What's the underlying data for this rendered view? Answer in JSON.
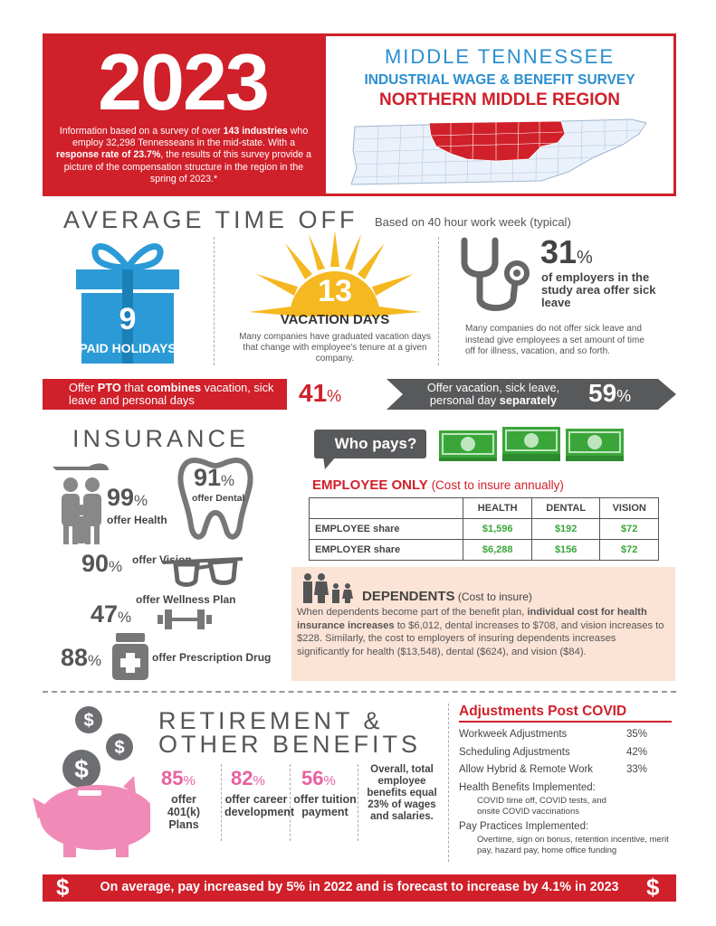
{
  "header": {
    "year": "2023",
    "info_prefix": "Information based on a survey of over ",
    "industries": "143 industries",
    "info_mid": " who employ 32,298 Tennesseans in the mid-state.  With a ",
    "response": "response rate of 23.7%",
    "info_end": ", the results of this survey provide a picture of the compensation structure in the region in the spring of 2023.*",
    "title1": "MIDDLE TENNESSEE",
    "title2": "INDUSTRIAL WAGE & BENEFIT SURVEY",
    "title3": "NORTHERN MIDDLE REGION"
  },
  "time_off": {
    "title": "AVERAGE TIME OFF",
    "subtitle": "Based on 40 hour work week (typical)",
    "holidays_num": "9",
    "holidays_label": "PAID HOLIDAYS",
    "vacation_num": "13",
    "vacation_label": "VACATION DAYS",
    "vacation_desc": "Many companies have graduated vacation days that change with employee's tenure at a given company.",
    "sick_pct": "31",
    "sick_pct_sign": "%",
    "sick_label": "of employers in the study area offer sick leave",
    "sick_desc": "Many companies do not offer sick leave and instead give employees a set amount of time off for illness, vacation, and so forth."
  },
  "pto": {
    "left_a": "Offer ",
    "left_b": "PTO",
    "left_c": " that ",
    "left_d": "combines",
    "left_e": " vacation, sick leave and personal days",
    "left_pct": "41",
    "right_a": "Offer vacation, sick leave, personal day ",
    "right_b": "separately",
    "right_pct": "59",
    "pct_sign": "%"
  },
  "insurance": {
    "title": "INSURANCE",
    "health_pct": "99",
    "health_lbl": "offer Health",
    "dental_pct": "91",
    "dental_lbl": "offer Dental",
    "vision_pct": "90",
    "vision_lbl": "offer Vision",
    "wellness_pct": "47",
    "wellness_lbl": "offer Wellness Plan",
    "rx_pct": "88",
    "rx_lbl": "offer Prescription Drug",
    "pct_sign": "%"
  },
  "who_pays": {
    "bubble": "Who pays?",
    "emp_only": "EMPLOYEE ONLY",
    "emp_only_sub": " (Cost to insure annually)",
    "columns": [
      "HEALTH",
      "DENTAL",
      "VISION"
    ],
    "rows": [
      {
        "label": "EMPLOYEE share",
        "values": [
          "$1,596",
          "$192",
          "$72"
        ]
      },
      {
        "label": "EMPLOYER share",
        "values": [
          "$6,288",
          "$156",
          "$72"
        ]
      }
    ]
  },
  "dependents": {
    "title": "DEPENDENTS",
    "title_sub": " (Cost to insure)",
    "text_a": "When dependents become part of the benefit plan, ",
    "text_b": "individual cost for health insurance increases",
    "text_c": " to $6,012, dental increases to $708, and vision increases to $228. Similarly, the cost to employers of insuring dependents increases significantly for health ($13,548), dental ($624), and vision ($84)."
  },
  "retirement": {
    "title_line1": "RETIREMENT &",
    "title_line2": "OTHER BENEFITS",
    "items": [
      {
        "pct": "85",
        "label": "offer 401(k) Plans"
      },
      {
        "pct": "82",
        "label": "offer career development"
      },
      {
        "pct": "56",
        "label": "offer tuition payment"
      }
    ],
    "pct_sign": "%",
    "overall": "Overall, total employee benefits equal 23% of wages and salaries."
  },
  "adjustments": {
    "title": "Adjustments Post COVID",
    "rows": [
      {
        "label": "Workweek Adjustments",
        "value": "35%"
      },
      {
        "label": "Scheduling Adjustments",
        "value": "42%"
      },
      {
        "label": "Allow Hybrid & Remote Work",
        "value": "33%"
      }
    ],
    "health_head": "Health Benefits Implemented:",
    "health_sub": "COVID time off, COVID tests, and onsite COVID vaccinations",
    "pay_head": "Pay Practices Implemented:",
    "pay_sub": "Overtime, sign on bonus, retention incentive, merit pay, hazard pay, home office funding"
  },
  "footer": {
    "text": "On average, pay increased by 5% in 2022 and is forecast to increase by 4.1% in 2023",
    "dollar": "$"
  }
}
